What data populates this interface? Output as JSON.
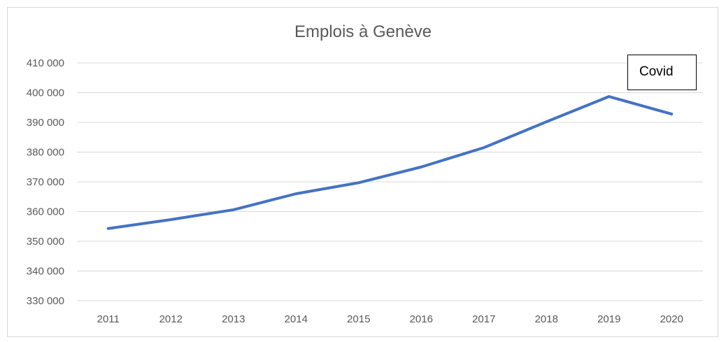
{
  "chart_data": {
    "type": "line",
    "title": "Emplois à Genève",
    "xlabel": "",
    "ylabel": "",
    "categories": [
      "2011",
      "2012",
      "2013",
      "2014",
      "2015",
      "2016",
      "2017",
      "2018",
      "2019",
      "2020"
    ],
    "series": [
      {
        "values": [
          354300,
          357300,
          360600,
          366000,
          369700,
          375000,
          381500,
          390200,
          398700,
          392800
        ]
      }
    ],
    "y_ticks": [
      "330 000",
      "340 000",
      "350 000",
      "360 000",
      "370 000",
      "380 000",
      "390 000",
      "400 000",
      "410 000"
    ],
    "ylim": [
      330000,
      410000
    ],
    "grid": true,
    "legend": "none",
    "annotations": [
      {
        "text": "Covid"
      }
    ],
    "colors": {
      "line": "#4472c4",
      "grid": "#d9d9d9",
      "text": "#595959"
    }
  }
}
